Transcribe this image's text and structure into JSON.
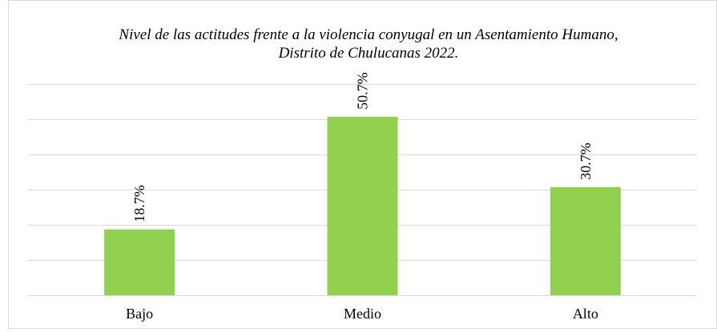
{
  "chart_data": {
    "type": "bar",
    "title": "Nivel de las actitudes frente a la violencia conyugal en un Asentamiento Humano, Distrito de Chulucanas 2022.",
    "categories": [
      "Bajo",
      "Medio",
      "Alto"
    ],
    "values": [
      18.7,
      50.7,
      30.7
    ],
    "value_labels": [
      "18.7%",
      "50.7%",
      "30.7%"
    ],
    "color": "#92d050",
    "ylim": [
      0,
      60
    ],
    "yticks": [
      0,
      10,
      20,
      30,
      40,
      50,
      60
    ],
    "grid": true
  }
}
